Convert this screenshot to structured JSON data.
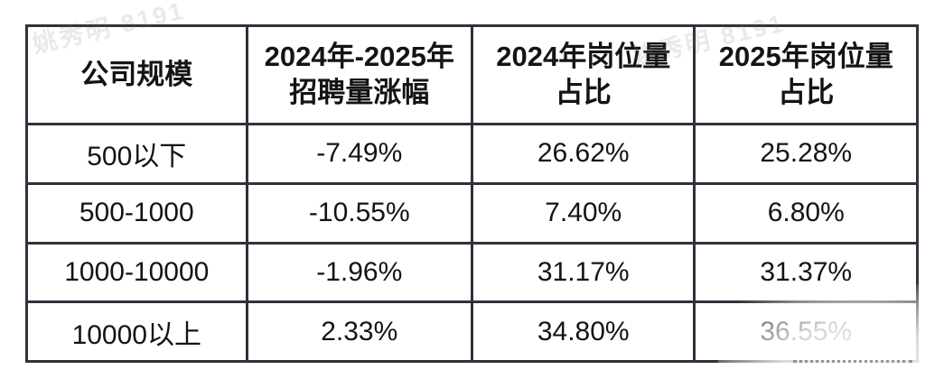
{
  "watermarks": {
    "top_left": "姚秀明 8191",
    "header_right": "姚秀明 8191"
  },
  "table": {
    "columns": [
      "公司规模",
      "2024年-2025年\n招聘量涨幅",
      "2024年岗位量\n占比",
      "2025年岗位量\n占比"
    ],
    "rows": [
      [
        "500以下",
        "-7.49%",
        "26.62%",
        "25.28%"
      ],
      [
        "500-1000",
        "-10.55%",
        "7.40%",
        "6.80%"
      ],
      [
        "1000-10000",
        "-1.96%",
        "31.17%",
        "31.37%"
      ],
      [
        "10000以上",
        "2.33%",
        "34.80%",
        "36.55%"
      ]
    ]
  },
  "colors": {
    "border": "#2e323c",
    "text": "#141414",
    "watermark_gray": "rgba(120,120,120,0.16)"
  }
}
